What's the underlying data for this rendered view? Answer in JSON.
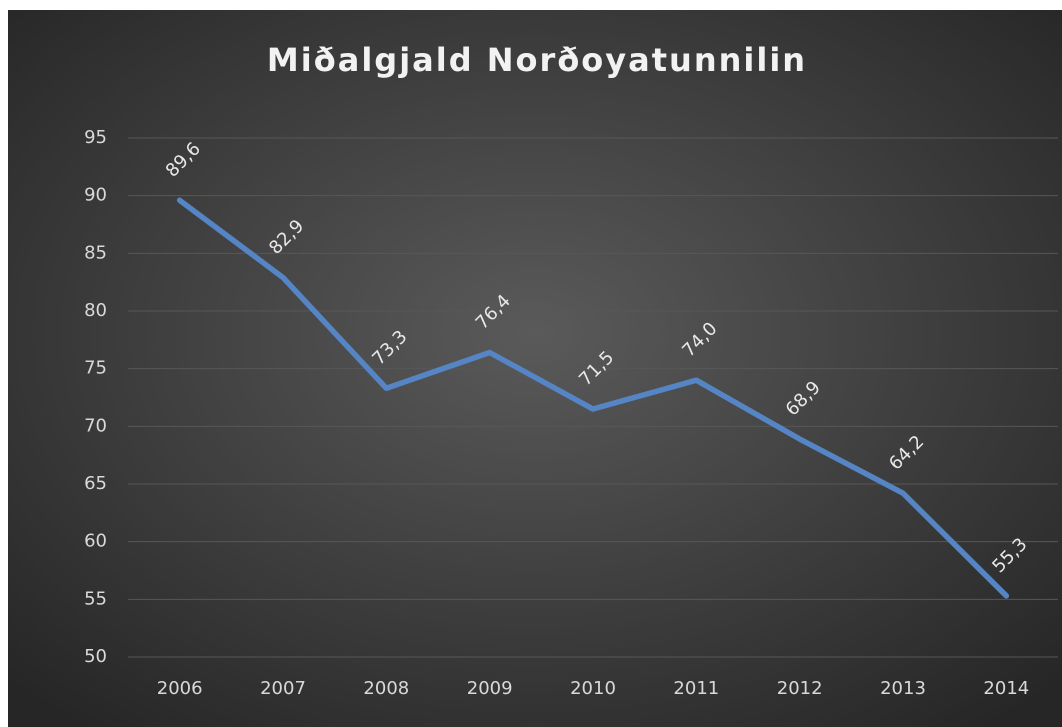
{
  "chart_data": {
    "type": "line",
    "title": "Miðalgjald Norðoyatunnilin",
    "categories": [
      "2006",
      "2007",
      "2008",
      "2009",
      "2010",
      "2011",
      "2012",
      "2013",
      "2014"
    ],
    "values": [
      89.6,
      82.9,
      73.3,
      76.4,
      71.5,
      74.0,
      68.9,
      64.2,
      55.3
    ],
    "value_labels": [
      "89,6",
      "82,9",
      "73,3",
      "76,4",
      "71,5",
      "74,0",
      "68,9",
      "64,2",
      "55,3"
    ],
    "color": "#5585c4",
    "ylim": [
      50,
      95
    ],
    "yticks": [
      50,
      55,
      60,
      65,
      70,
      75,
      80,
      85,
      90,
      95
    ],
    "grid": true
  }
}
